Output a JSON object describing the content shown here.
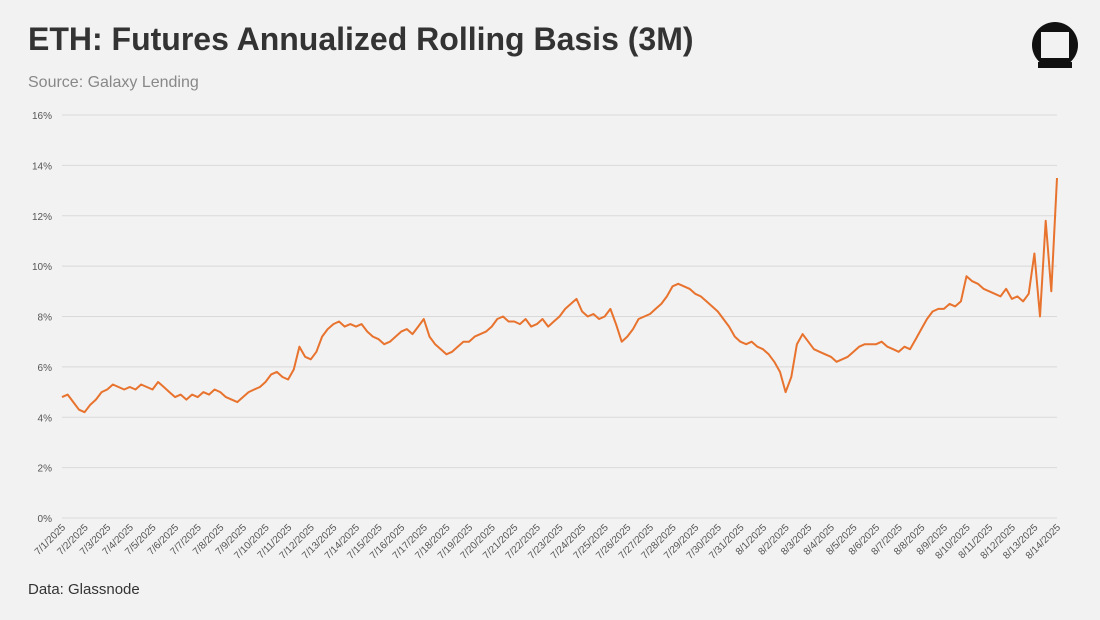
{
  "chart_data": {
    "type": "line",
    "title": "ETH: Futures Annualized Rolling Basis (3M)",
    "subtitle": "Source: Galaxy Lending",
    "source": "Data: Glassnode",
    "categories": [
      "7/1/2025",
      null,
      null,
      null,
      "7/2/2025",
      null,
      null,
      null,
      "7/3/2025",
      null,
      null,
      null,
      "7/4/2025",
      null,
      null,
      null,
      "7/5/2025",
      null,
      null,
      null,
      "7/6/2025",
      null,
      null,
      null,
      "7/7/2025",
      null,
      null,
      null,
      "7/8/2025",
      null,
      null,
      null,
      "7/9/2025",
      null,
      null,
      null,
      "7/10/2025",
      null,
      null,
      null,
      "7/11/2025",
      null,
      null,
      null,
      "7/12/2025",
      null,
      null,
      null,
      "7/13/2025",
      null,
      null,
      null,
      "7/14/2025",
      null,
      null,
      null,
      "7/15/2025",
      null,
      null,
      null,
      "7/16/2025",
      null,
      null,
      null,
      "7/17/2025",
      null,
      null,
      null,
      "7/18/2025",
      null,
      null,
      null,
      "7/19/2025",
      null,
      null,
      null,
      "7/20/2025",
      null,
      null,
      null,
      "7/21/2025",
      null,
      null,
      null,
      "7/22/2025",
      null,
      null,
      null,
      "7/23/2025",
      null,
      null,
      null,
      "7/24/2025",
      null,
      null,
      null,
      "7/25/2025",
      null,
      null,
      null,
      "7/26/2025",
      null,
      null,
      null,
      "7/27/2025",
      null,
      null,
      null,
      "7/28/2025",
      null,
      null,
      null,
      "7/29/2025",
      null,
      null,
      null,
      "7/30/2025",
      null,
      null,
      null,
      "7/31/2025",
      null,
      null,
      null,
      "8/1/2025",
      null,
      null,
      null,
      "8/2/2025",
      null,
      null,
      null,
      "8/3/2025",
      null,
      null,
      null,
      "8/4/2025",
      null,
      null,
      null,
      "8/5/2025",
      null,
      null,
      null,
      "8/6/2025",
      null,
      null,
      null,
      "8/7/2025",
      null,
      null,
      null,
      "8/8/2025",
      null,
      null,
      null,
      "8/9/2025",
      null,
      null,
      null,
      "8/10/2025",
      null,
      null,
      null,
      "8/11/2025",
      null,
      null,
      null,
      "8/12/2025",
      null,
      null,
      null,
      "8/13/2025",
      null,
      null,
      null,
      "8/14/2025"
    ],
    "series": [
      {
        "color": "#e8732e",
        "values": [
          4.8,
          4.9,
          4.6,
          4.3,
          4.2,
          4.5,
          4.7,
          5.0,
          5.1,
          5.3,
          5.2,
          5.1,
          5.2,
          5.1,
          5.3,
          5.2,
          5.1,
          5.4,
          5.2,
          5.0,
          4.8,
          4.9,
          4.7,
          4.9,
          4.8,
          5.0,
          4.9,
          5.1,
          5.0,
          4.8,
          4.7,
          4.6,
          4.8,
          5.0,
          5.1,
          5.2,
          5.4,
          5.7,
          5.8,
          5.6,
          5.5,
          5.9,
          6.8,
          6.4,
          6.3,
          6.6,
          7.2,
          7.5,
          7.7,
          7.8,
          7.6,
          7.7,
          7.6,
          7.7,
          7.4,
          7.2,
          7.1,
          6.9,
          7.0,
          7.2,
          7.4,
          7.5,
          7.3,
          7.6,
          7.9,
          7.2,
          6.9,
          6.7,
          6.5,
          6.6,
          6.8,
          7.0,
          7.0,
          7.2,
          7.3,
          7.4,
          7.6,
          7.9,
          8.0,
          7.8,
          7.8,
          7.7,
          7.9,
          7.6,
          7.7,
          7.9,
          7.6,
          7.8,
          8.0,
          8.3,
          8.5,
          8.7,
          8.2,
          8.0,
          8.1,
          7.9,
          8.0,
          8.3,
          7.7,
          7.0,
          7.2,
          7.5,
          7.9,
          8.0,
          8.1,
          8.3,
          8.5,
          8.8,
          9.2,
          9.3,
          9.2,
          9.1,
          8.9,
          8.8,
          8.6,
          8.4,
          8.2,
          7.9,
          7.6,
          7.2,
          7.0,
          6.9,
          7.0,
          6.8,
          6.7,
          6.5,
          6.2,
          5.8,
          5.0,
          5.6,
          6.9,
          7.3,
          7.0,
          6.7,
          6.6,
          6.5,
          6.4,
          6.2,
          6.3,
          6.4,
          6.6,
          6.8,
          6.9,
          6.9,
          6.9,
          7.0,
          6.8,
          6.7,
          6.6,
          6.8,
          6.7,
          7.1,
          7.5,
          7.9,
          8.2,
          8.3,
          8.3,
          8.5,
          8.4,
          8.6,
          9.6,
          9.4,
          9.3,
          9.1,
          9.0,
          8.9,
          8.8,
          9.1,
          8.7,
          8.8,
          8.6,
          8.9,
          10.5,
          8.0,
          11.8,
          9.0,
          13.5
        ]
      }
    ],
    "ylim": [
      0,
      16
    ],
    "yticks": [
      {
        "value": 0,
        "label": "0%"
      },
      {
        "value": 2,
        "label": "2%"
      },
      {
        "value": 4,
        "label": "4%"
      },
      {
        "value": 6,
        "label": "6%"
      },
      {
        "value": 8,
        "label": "8%"
      },
      {
        "value": 10,
        "label": "10%"
      },
      {
        "value": 12,
        "label": "12%"
      },
      {
        "value": 14,
        "label": "14%"
      },
      {
        "value": 16,
        "label": "16%"
      }
    ],
    "grid": true
  }
}
